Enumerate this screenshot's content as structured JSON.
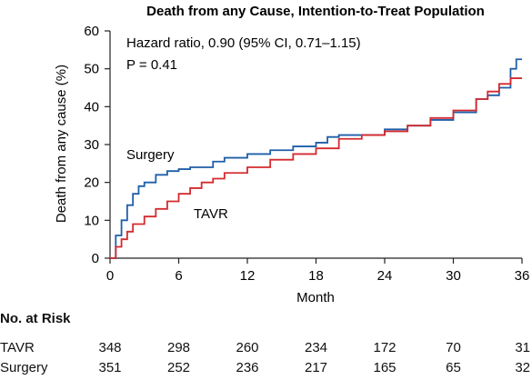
{
  "chart_data": {
    "type": "line",
    "title": "Death from any Cause, Intention-to-Treat Population",
    "xlabel": "Month",
    "ylabel": "Death from any cause (%)",
    "xlim": [
      0,
      36
    ],
    "ylim": [
      0,
      60
    ],
    "xticks": [
      "0",
      "6",
      "12",
      "18",
      "24",
      "30",
      "36"
    ],
    "yticks": [
      "0",
      "10",
      "20",
      "30",
      "40",
      "50",
      "60"
    ],
    "grid": false,
    "annotations": [
      "Hazard ratio, 0.90 (95% CI, 0.71–1.15)",
      "P = 0.41"
    ],
    "series": [
      {
        "name": "Surgery",
        "color": "#1f5fa8",
        "x": [
          0,
          0.5,
          1,
          1.5,
          2,
          2.5,
          3,
          4,
          5,
          6,
          7,
          8,
          9,
          10,
          12,
          14,
          16,
          18,
          19,
          20,
          22,
          24,
          26,
          28,
          30,
          32,
          33,
          34,
          35,
          35.5,
          36
        ],
        "y": [
          0,
          6,
          10,
          14,
          17,
          19,
          20,
          22,
          23,
          23.5,
          24,
          24,
          25.5,
          26.5,
          27.5,
          28.5,
          29.5,
          30.5,
          32,
          32.5,
          32.5,
          34,
          35,
          36.5,
          38.5,
          42,
          43,
          45,
          50,
          52.5,
          52.5
        ]
      },
      {
        "name": "TAVR",
        "color": "#d42a2f",
        "x": [
          0,
          0.5,
          1,
          1.5,
          2,
          3,
          4,
          5,
          6,
          7,
          8,
          9,
          10,
          12,
          14,
          16,
          18,
          20,
          22,
          24,
          26,
          28,
          30,
          32,
          33,
          34,
          35,
          36
        ],
        "y": [
          0,
          3,
          5,
          7,
          9,
          11,
          13,
          15,
          17,
          18.5,
          20,
          21,
          22.5,
          24,
          26,
          27.5,
          29,
          31.5,
          32.5,
          33.5,
          35,
          37,
          39,
          42,
          44,
          46,
          47.5,
          47.5
        ]
      }
    ],
    "series_labels": [
      "Surgery",
      "TAVR"
    ],
    "risk_table": {
      "title": "No. at Risk",
      "timepoints": [
        0,
        6,
        12,
        18,
        24,
        30,
        36
      ],
      "rows": [
        {
          "label": "TAVR",
          "values": [
            "348",
            "298",
            "260",
            "234",
            "172",
            "70",
            "31"
          ]
        },
        {
          "label": "Surgery",
          "values": [
            "351",
            "252",
            "236",
            "217",
            "165",
            "65",
            "32"
          ]
        }
      ]
    }
  }
}
